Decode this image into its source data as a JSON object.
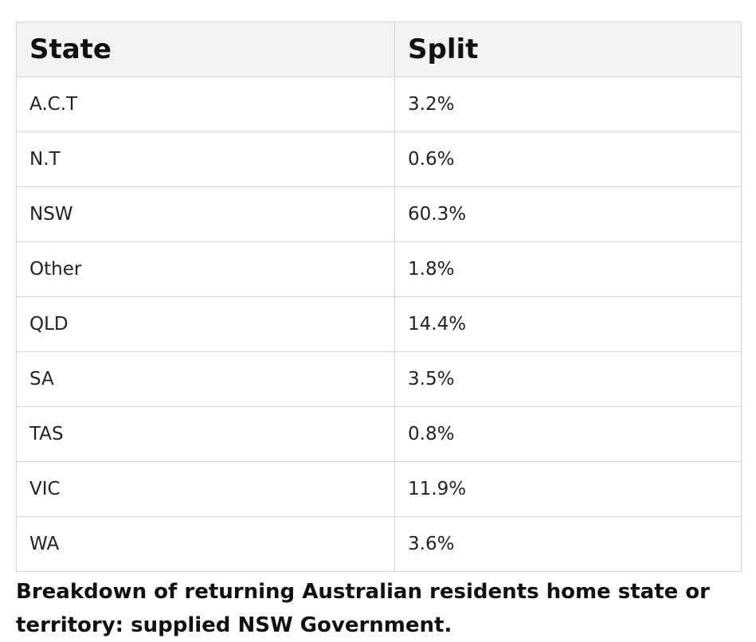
{
  "chart_data": {
    "type": "table",
    "columns": [
      "State",
      "Split"
    ],
    "rows": [
      {
        "state": "A.C.T",
        "split": "3.2%"
      },
      {
        "state": "N.T",
        "split": "0.6%"
      },
      {
        "state": "NSW",
        "split": "60.3%"
      },
      {
        "state": "Other",
        "split": "1.8%"
      },
      {
        "state": "QLD",
        "split": "14.4%"
      },
      {
        "state": "SA",
        "split": "3.5%"
      },
      {
        "state": "TAS",
        "split": "0.8%"
      },
      {
        "state": "VIC",
        "split": "11.9%"
      },
      {
        "state": "WA",
        "split": "3.6%"
      }
    ],
    "caption": " Breakdown of returning Australian residents home state or territory: supplied NSW Government."
  }
}
